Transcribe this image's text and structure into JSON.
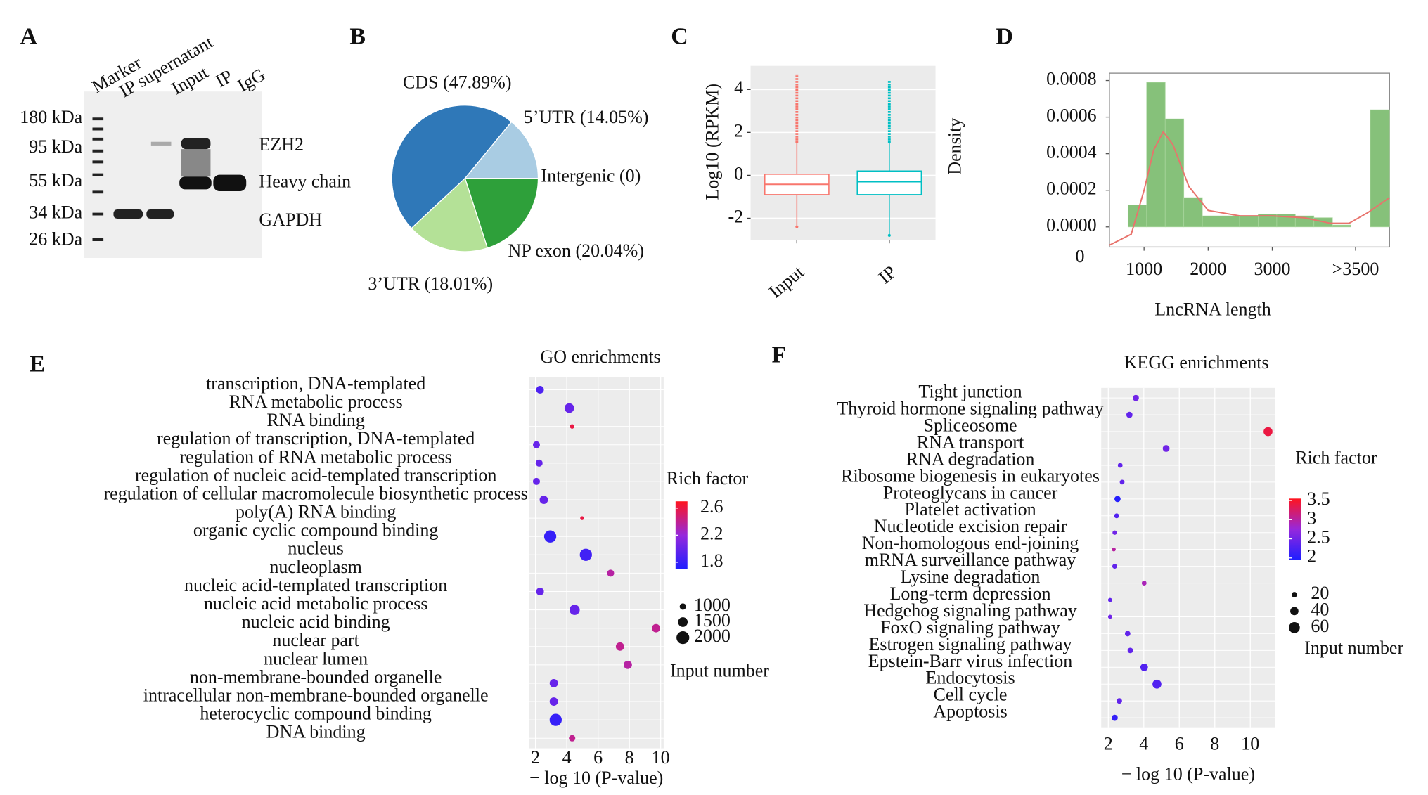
{
  "chart_data": [
    {
      "type": "blot",
      "panel": "A",
      "lanes": [
        "Marker",
        "IP supernatant",
        "Input",
        "IP",
        "IgG"
      ],
      "markers": [
        "180 kDa",
        "95 kDa",
        "55 kDa",
        "34 kDa",
        "26 kDa"
      ],
      "bands": [
        "EZH2",
        "Heavy chain",
        "GAPDH"
      ]
    },
    {
      "type": "pie",
      "panel": "B",
      "categories": [
        "CDS (47.89%)",
        "5’UTR (14.05%)",
        "Intergenic (0)",
        "NP exon (20.04%)",
        "3’UTR (18.01%)"
      ],
      "values": [
        47.89,
        14.05,
        0,
        20.04,
        18.01
      ],
      "colors": [
        "#2f78b8",
        "#a9cce3",
        "#ffffff",
        "#2ea03a",
        "#b4e197"
      ]
    },
    {
      "type": "box",
      "panel": "C",
      "ylabel": "Log10 (RPKM)",
      "categories": [
        "Input",
        "IP"
      ],
      "boxes": [
        {
          "color": "#f8766d",
          "whisker_low": -2.4,
          "q1": -0.9,
          "median": -0.42,
          "q3": 0.05,
          "whisker_high": 1.5,
          "outlier_max": 4.7
        },
        {
          "color": "#00bfc4",
          "whisker_low": -2.8,
          "q1": -0.9,
          "median": -0.3,
          "q3": 0.2,
          "whisker_high": 1.5,
          "outlier_max": 4.4
        }
      ],
      "ylim": [
        -3,
        5.1
      ],
      "yticks": [
        -2,
        0,
        2,
        4
      ]
    },
    {
      "type": "histogram",
      "panel": "D",
      "ylabel": "Density",
      "xlabel": "LncRNA length",
      "bins": [
        460,
        750,
        1040,
        1330,
        1620,
        1910,
        2200,
        2490,
        2780,
        3070,
        3360,
        3650,
        3940,
        4230,
        4530,
        4830
      ],
      "values": [
        0,
        0.00012,
        0.00079,
        0.00059,
        0.00016,
        6e-05,
        6e-05,
        6e-05,
        7e-05,
        7e-05,
        6e-05,
        5e-05,
        1e-05,
        0,
        0.00064
      ],
      "color": "#86c17a",
      "curve_x": [
        460,
        800,
        1000,
        1150,
        1300,
        1450,
        1700,
        2000,
        2500,
        3000,
        3500,
        3900,
        4200,
        4500,
        4830
      ],
      "curve_y": [
        -0.0001,
        -4e-05,
        0.0002,
        0.00042,
        0.00052,
        0.00045,
        0.00022,
        9e-05,
        6e-05,
        6e-05,
        5e-05,
        2e-05,
        2e-05,
        8e-05,
        0.00016
      ],
      "curve_color": "#e8736c",
      "xlim": [
        460,
        4830
      ],
      "xticks": [
        0,
        1000,
        2000,
        3000,
        {
          "value": 4300,
          "label": ">3500"
        }
      ],
      "ylim": [
        -0.00011,
        0.00084
      ],
      "yticks": [
        0.0008,
        0.0006,
        0.0004,
        0.0002,
        {
          "value": 0,
          "label": "0.0000"
        }
      ]
    },
    {
      "type": "dotplot",
      "panel": "E",
      "title": "GO enrichments",
      "xlabel": "− log 10 (P-value)",
      "categories": [
        "transcription, DNA-templated",
        "RNA metabolic process",
        "RNA binding",
        "regulation of transcription, DNA-templated",
        "regulation of RNA metabolic process",
        "regulation of nucleic acid-templated transcription",
        "regulation of cellular macromolecule biosynthetic process",
        "poly(A) RNA binding",
        "organic cyclic compound binding",
        "nucleus",
        "nucleoplasm",
        "nucleic acid-templated transcription",
        "nucleic acid metabolic process",
        "nucleic acid binding",
        "nuclear part",
        "nuclear lumen",
        "non-membrane-bounded organelle",
        "intracellular non-membrane-bounded organelle",
        "heterocyclic compound binding",
        "DNA binding"
      ],
      "values": [
        2.29,
        4.16,
        4.34,
        2.06,
        2.23,
        2.06,
        2.53,
        4.98,
        2.94,
        5.22,
        6.8,
        2.29,
        4.5,
        9.7,
        7.4,
        7.9,
        3.17,
        3.17,
        3.29,
        4.34
      ],
      "rich_factor": [
        1.9,
        2.0,
        2.6,
        2.0,
        2.0,
        2.0,
        2.0,
        2.6,
        1.8,
        1.85,
        2.35,
        2.0,
        2.0,
        2.4,
        2.4,
        2.35,
        2.0,
        2.0,
        1.8,
        2.4
      ],
      "input_number": [
        1200,
        1500,
        700,
        1100,
        1100,
        1100,
        1300,
        600,
        1900,
        1900,
        1100,
        1200,
        1600,
        1300,
        1300,
        1300,
        1300,
        1300,
        1900,
        1000
      ],
      "xlim": [
        1.59,
        10.19
      ],
      "xticks": [
        2,
        4,
        6,
        8,
        10
      ],
      "color_title": "Rich factor",
      "colorlim": [
        1.7,
        2.7
      ],
      "colorbar_ticks": [
        2.6,
        2.2,
        1.8
      ],
      "size_title": "Input number",
      "size_ticks": [
        1000,
        1500,
        2000
      ]
    },
    {
      "type": "dotplot",
      "panel": "F",
      "title": "KEGG enrichments",
      "xlabel": "− log 10 (P-value)",
      "categories": [
        "Tight junction",
        "Thyroid hormone signaling pathway",
        "Spliceosome",
        "RNA transport",
        "RNA degradation",
        "Ribosome biogenesis in eukaryotes",
        "Proteoglycans in cancer",
        "Platelet activation",
        "Nucleotide excision repair",
        "Non-homologous end-joining",
        "mRNA surveillance pathway",
        "Lysine degradation",
        "Long-term depression",
        "Hedgehog signaling pathway",
        "FoxO signaling pathway",
        "Estrogen signaling pathway",
        "Epstein-Barr virus infection",
        "Endocytosis",
        "Cell cycle",
        "Apoptosis"
      ],
      "values": [
        3.55,
        3.19,
        11.0,
        5.26,
        2.67,
        2.78,
        2.52,
        2.47,
        2.36,
        2.31,
        2.36,
        4.02,
        2.1,
        2.1,
        3.09,
        3.24,
        4.02,
        4.74,
        2.62,
        2.36
      ],
      "rich_factor": [
        2.5,
        2.4,
        3.4,
        2.5,
        2.4,
        2.4,
        2.0,
        2.3,
        2.5,
        3.0,
        2.4,
        2.9,
        2.4,
        2.5,
        2.4,
        2.4,
        2.3,
        2.3,
        2.4,
        2.1
      ],
      "input_number": [
        25,
        25,
        45,
        30,
        15,
        15,
        25,
        15,
        12,
        8,
        15,
        15,
        10,
        10,
        20,
        20,
        35,
        45,
        20,
        25
      ],
      "xlim": [
        1.6,
        11.4
      ],
      "xticks": [
        2,
        4,
        6,
        8,
        10
      ],
      "color_title": "Rich factor",
      "colorlim": [
        1.95,
        3.55
      ],
      "colorbar_ticks": [
        3.5,
        3.0,
        2.5,
        2.0
      ],
      "size_title": "Input number",
      "size_ticks": [
        20,
        40,
        60
      ]
    }
  ]
}
